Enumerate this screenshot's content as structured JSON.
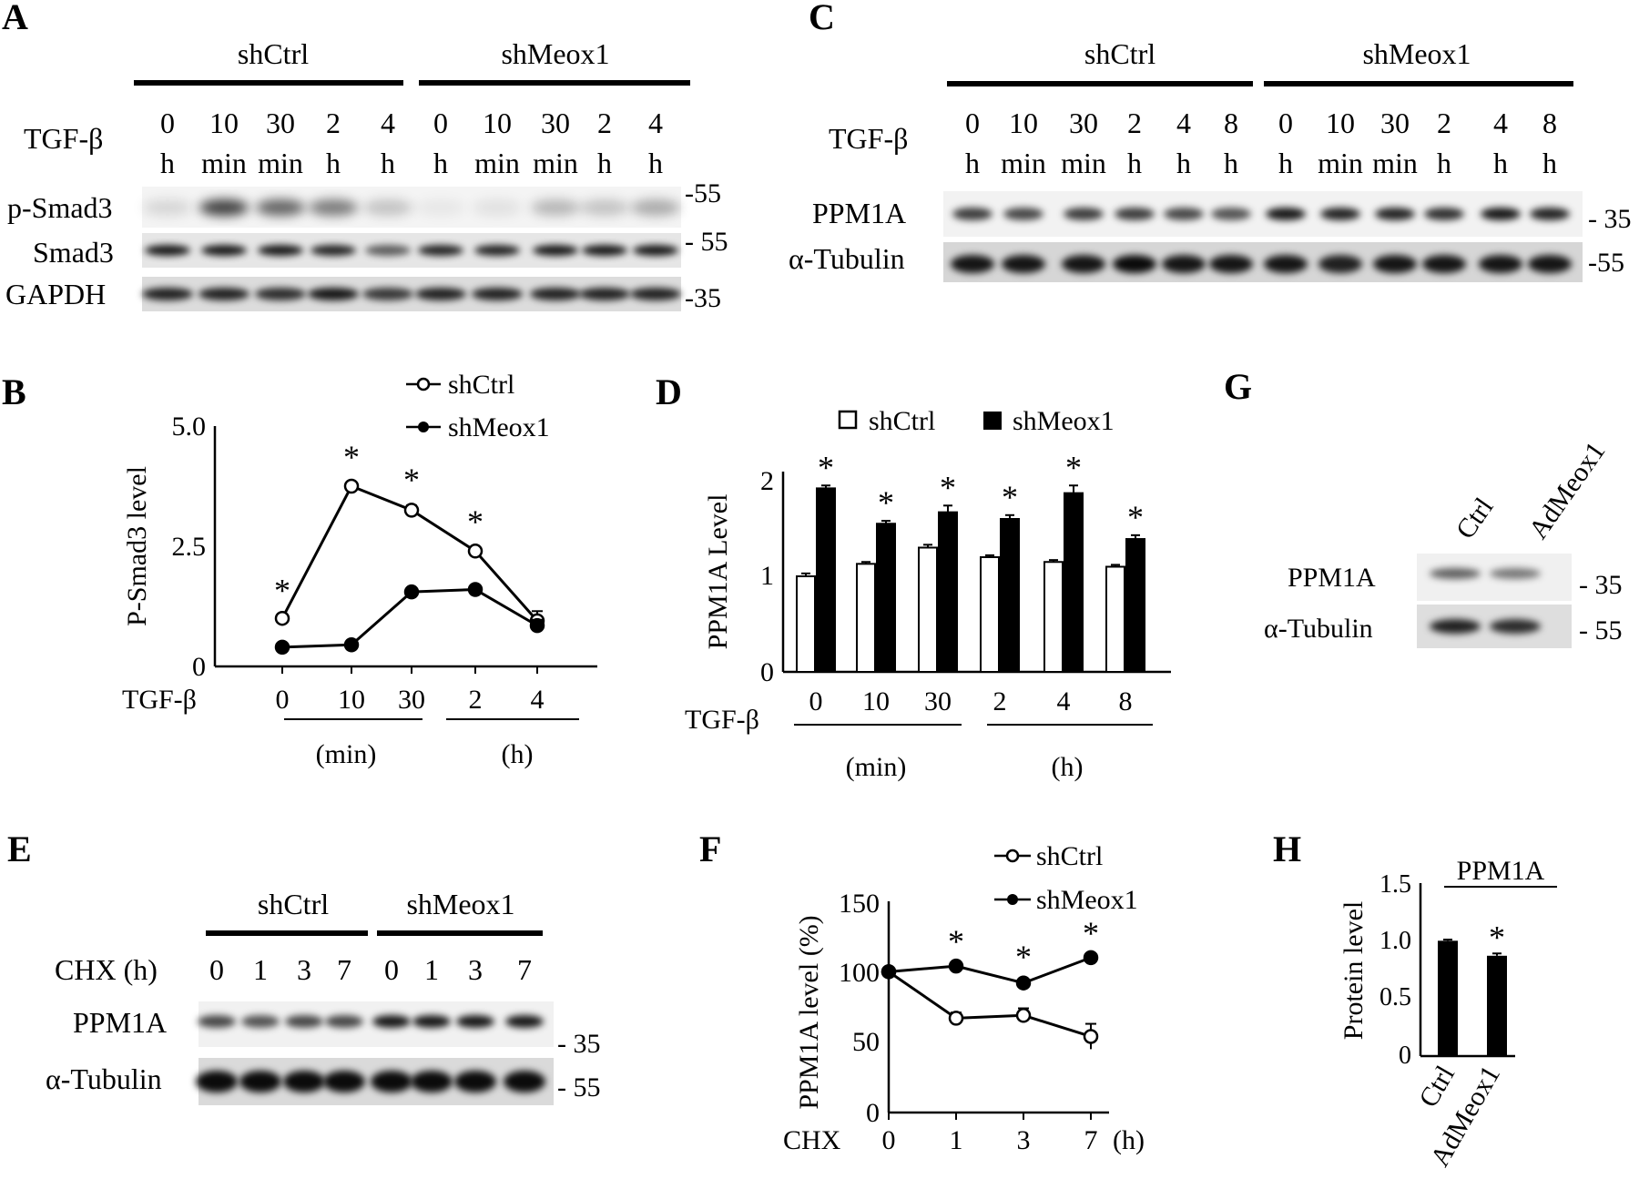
{
  "panels": {
    "A": {
      "label": "A",
      "groups": [
        "shCtrl",
        "shMeox1"
      ],
      "treatment": "TGF-β",
      "lanes_top": [
        "0",
        "10",
        "30",
        "2",
        "4",
        "0",
        "10",
        "30",
        "2",
        "4"
      ],
      "lanes_bottom": [
        "h",
        "min",
        "min",
        "h",
        "h",
        "h",
        "min",
        "min",
        "h",
        "h"
      ],
      "rows": [
        "p-Smad3",
        "Smad3",
        "GAPDH"
      ],
      "markers": [
        "-55",
        "- 55",
        "-35"
      ]
    },
    "B": {
      "label": "B",
      "ylabel": "P-Smad3 level",
      "xlabel_prefix": "TGF-β",
      "legend": [
        "shCtrl",
        "shMeox1"
      ],
      "yticks": [
        "5.0",
        "2.5",
        "0"
      ],
      "xticks": [
        "0",
        "10",
        "30",
        "2",
        "4"
      ],
      "units": [
        "(min)",
        "(h)"
      ],
      "star": "*"
    },
    "C": {
      "label": "C",
      "groups": [
        "shCtrl",
        "shMeox1"
      ],
      "treatment": "TGF-β",
      "lanes_top": [
        "0",
        "10",
        "30",
        "2",
        "4",
        "8",
        "0",
        "10",
        "30",
        "2",
        "4",
        "8"
      ],
      "lanes_bottom": [
        "h",
        "min",
        "min",
        "h",
        "h",
        "h",
        "h",
        "min",
        "min",
        "h",
        "h",
        "h"
      ],
      "rows": [
        "PPM1A",
        "α-Tubulin"
      ],
      "markers": [
        "- 35",
        "-55"
      ]
    },
    "D": {
      "label": "D",
      "ylabel": "PPM1A Level",
      "xlabel_prefix": "TGF-β",
      "legend": [
        "shCtrl",
        "shMeox1"
      ],
      "yticks": [
        "2",
        "1",
        "0"
      ],
      "xticks": [
        "0",
        "10",
        "30",
        "2",
        "4",
        "8"
      ],
      "units": [
        "(min)",
        "(h)"
      ],
      "star": "*"
    },
    "E": {
      "label": "E",
      "groups": [
        "shCtrl",
        "shMeox1"
      ],
      "treatment": "CHX (h)",
      "lanes": [
        "0",
        "1",
        "3",
        "7",
        "0",
        "1",
        "3",
        "7"
      ],
      "rows": [
        "PPM1A",
        "α-Tubulin"
      ],
      "markers": [
        "- 35",
        "- 55"
      ]
    },
    "F": {
      "label": "F",
      "ylabel": "PPM1A level (%)",
      "xlabel_prefix": "CHX",
      "xunit": "(h)",
      "legend": [
        "shCtrl",
        "shMeox1"
      ],
      "yticks": [
        "150",
        "100",
        "50",
        "0"
      ],
      "xticks": [
        "0",
        "1",
        "3",
        "7"
      ],
      "star": "*"
    },
    "G": {
      "label": "G",
      "lanes": [
        "Ctrl",
        "AdMeox1"
      ],
      "rows": [
        "PPM1A",
        "α-Tubulin"
      ],
      "markers": [
        "- 35",
        "- 55"
      ]
    },
    "H": {
      "label": "H",
      "title": "PPM1A",
      "ylabel": "Protein level",
      "yticks": [
        "1.5",
        "1.0",
        "0.5",
        "0"
      ],
      "xticks": [
        "Ctrl",
        "AdMeox1"
      ],
      "star": "*"
    }
  },
  "chart_data": [
    {
      "panel": "B",
      "type": "line",
      "categories": [
        "0",
        "10",
        "30",
        "2",
        "4"
      ],
      "ylim": [
        0,
        5.0
      ],
      "series": [
        {
          "name": "shCtrl",
          "values": [
            1.0,
            3.75,
            3.25,
            2.4,
            0.95
          ],
          "errors": [
            0.05,
            0.08,
            0.1,
            0.08,
            0.2
          ],
          "marker": "open"
        },
        {
          "name": "shMeox1",
          "values": [
            0.4,
            0.45,
            1.55,
            1.6,
            0.85
          ],
          "errors": [
            0.04,
            0.04,
            0.06,
            0.08,
            0.12
          ],
          "marker": "filled"
        }
      ],
      "significant": [
        0,
        1,
        2,
        3
      ]
    },
    {
      "panel": "D",
      "type": "bar",
      "categories": [
        "0",
        "10",
        "30",
        "2",
        "4",
        "8"
      ],
      "ylim": [
        0,
        2
      ],
      "series": [
        {
          "name": "shCtrl",
          "values": [
            1.0,
            1.13,
            1.3,
            1.2,
            1.15,
            1.1
          ],
          "errors": [
            0.03,
            0.02,
            0.03,
            0.02,
            0.02,
            0.02
          ],
          "fill": "white"
        },
        {
          "name": "shMeox1",
          "values": [
            1.92,
            1.55,
            1.67,
            1.6,
            1.87,
            1.39
          ],
          "errors": [
            0.03,
            0.03,
            0.07,
            0.04,
            0.08,
            0.04
          ],
          "fill": "black"
        }
      ],
      "significant": [
        0,
        1,
        2,
        3,
        4,
        5
      ]
    },
    {
      "panel": "F",
      "type": "line",
      "x": [
        0,
        1,
        3,
        7
      ],
      "categories": [
        "0",
        "1",
        "3",
        "7"
      ],
      "ylim": [
        0,
        150
      ],
      "series": [
        {
          "name": "shCtrl",
          "values": [
            100,
            67,
            69,
            54
          ],
          "errors": [
            2,
            4,
            5,
            9
          ],
          "marker": "open"
        },
        {
          "name": "shMeox1",
          "values": [
            100,
            104,
            92,
            110
          ],
          "errors": [
            2,
            2,
            3,
            2
          ],
          "marker": "filled"
        }
      ],
      "significant": [
        1,
        2,
        3
      ]
    },
    {
      "panel": "H",
      "type": "bar",
      "categories": [
        "Ctrl",
        "AdMeox1"
      ],
      "values": [
        1.0,
        0.87
      ],
      "errors": [
        0.01,
        0.02
      ],
      "ylim": [
        0,
        1.5
      ],
      "title": "PPM1A",
      "ylabel": "Protein level",
      "significant": [
        1
      ]
    }
  ]
}
